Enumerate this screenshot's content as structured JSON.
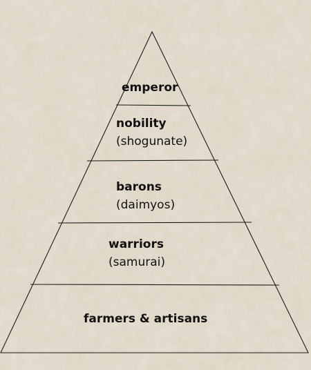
{
  "diagram": {
    "tiers": [
      {
        "name": "emperor",
        "sub": ""
      },
      {
        "name": "nobility",
        "sub": "(shogunate)"
      },
      {
        "name": "barons",
        "sub": "(daimyos)"
      },
      {
        "name": "warriors",
        "sub": "(samurai)"
      },
      {
        "name": "farmers & artisans",
        "sub": ""
      }
    ]
  },
  "colors": {
    "parchment": "#d8cfbd",
    "line": "#1a1a1a",
    "text": "#111111"
  }
}
